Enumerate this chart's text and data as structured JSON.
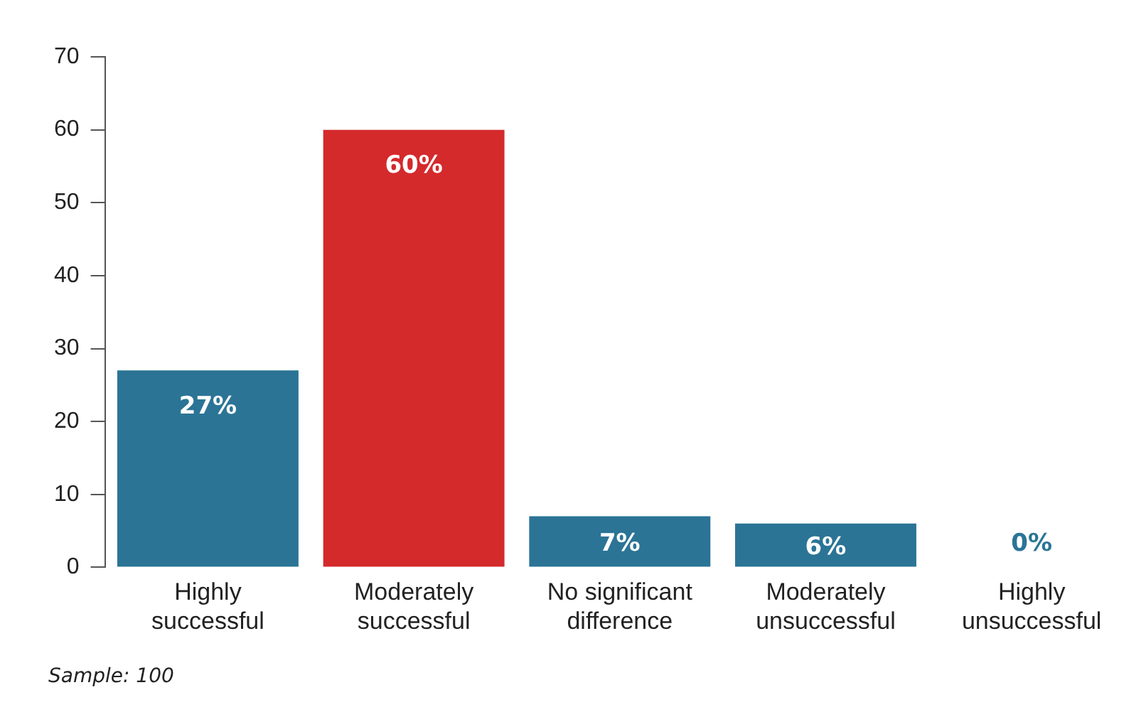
{
  "chart_data": {
    "type": "bar",
    "categories": [
      "Highly successful",
      "Moderately successful",
      "No significant difference",
      "Moderately unsuccessful",
      "Highly unsuccessful"
    ],
    "values": [
      27,
      60,
      7,
      6,
      0
    ],
    "colors": [
      "#2b7496",
      "#d42a2c",
      "#2b7496",
      "#2b7496",
      "#2b7496"
    ],
    "value_labels": [
      "27%",
      "60%",
      "7%",
      "6%",
      "0%"
    ],
    "ylim": [
      0,
      70
    ],
    "yticks": [
      0,
      10,
      20,
      30,
      40,
      50,
      60,
      70
    ],
    "grid": false,
    "legend": false,
    "annotations": [
      "Sample: 100"
    ]
  }
}
